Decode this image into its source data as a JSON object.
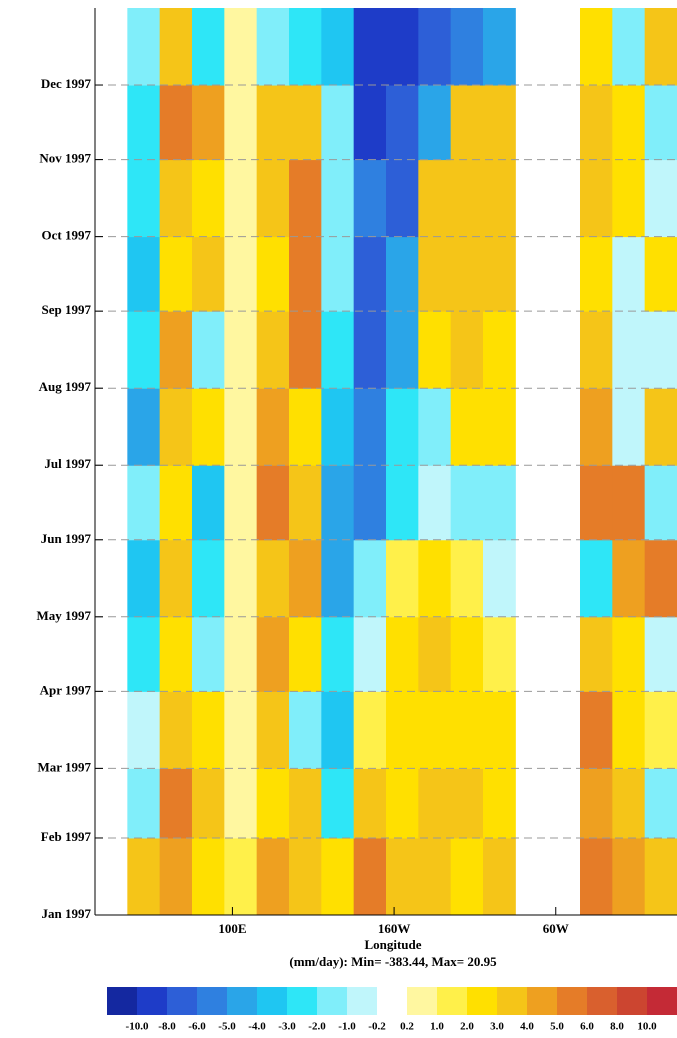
{
  "chart_data": {
    "type": "heatmap",
    "xlabel": "Longitude",
    "subtitle": "(mm/day): Min= -383.44, Max= 20.95",
    "x_bins": [
      15,
      35,
      55,
      75,
      95,
      115,
      135,
      155,
      175,
      195,
      215,
      235,
      255,
      275,
      295,
      315,
      335,
      355,
      375
    ],
    "y_bins": [
      1,
      32,
      60,
      91,
      121,
      152,
      182,
      213,
      244,
      274,
      305,
      335,
      366
    ],
    "xlim": [
      15,
      375
    ],
    "ylim": [
      1,
      366
    ],
    "xticks": [
      {
        "value": 100,
        "label": "100E"
      },
      {
        "value": 200,
        "label": "160W"
      },
      {
        "value": 300,
        "label": "60W"
      }
    ],
    "yticks": [
      {
        "value": 1,
        "label": "Jan 1997"
      },
      {
        "value": 32,
        "label": "Feb 1997"
      },
      {
        "value": 60,
        "label": "Mar 1997"
      },
      {
        "value": 91,
        "label": "Apr 1997"
      },
      {
        "value": 121,
        "label": "May 1997"
      },
      {
        "value": 152,
        "label": "Jun 1997"
      },
      {
        "value": 182,
        "label": "Jul 1997"
      },
      {
        "value": 213,
        "label": "Aug 1997"
      },
      {
        "value": 244,
        "label": "Sep 1997"
      },
      {
        "value": 274,
        "label": "Oct 1997"
      },
      {
        "value": 305,
        "label": "Nov 1997"
      },
      {
        "value": 335,
        "label": "Dec 1997"
      }
    ],
    "grid": true,
    "values": [
      [
        null,
        3,
        4,
        2,
        1,
        4,
        3,
        2,
        5,
        3,
        3,
        2,
        3,
        null,
        null,
        5,
        4,
        3
      ],
      [
        null,
        -2,
        5,
        3,
        0.5,
        2,
        3,
        -3,
        3,
        2,
        3,
        3,
        2,
        null,
        null,
        4,
        3,
        -2
      ],
      [
        null,
        -1,
        3,
        2,
        0.5,
        3,
        -2,
        -4,
        1,
        2,
        2,
        2,
        2,
        null,
        null,
        5,
        2,
        1
      ],
      [
        null,
        -3,
        2,
        -2,
        0.5,
        4,
        2,
        -3,
        -1,
        2,
        3,
        2,
        1,
        null,
        null,
        3,
        2,
        -1
      ],
      [
        null,
        -4,
        3,
        -3,
        0.5,
        3,
        4,
        -5,
        -2,
        1,
        2,
        1,
        -1,
        null,
        null,
        -3,
        4,
        5
      ],
      [
        null,
        -2,
        2,
        -4,
        0.5,
        5,
        3,
        -5,
        -6,
        -3,
        -1,
        -2,
        -2,
        null,
        null,
        5,
        5,
        -2
      ],
      [
        null,
        -5,
        3,
        2,
        0.5,
        4,
        2,
        -4,
        -6,
        -3,
        -2,
        2,
        2,
        null,
        null,
        4,
        -1,
        3
      ],
      [
        null,
        -3,
        4,
        -2,
        0.5,
        3,
        5,
        -3,
        -8,
        -5,
        2,
        3,
        2,
        null,
        null,
        3,
        -1,
        -1
      ],
      [
        null,
        -4,
        2,
        3,
        0.5,
        2,
        5,
        -2,
        -8,
        -5,
        3,
        3,
        3,
        null,
        null,
        2,
        -1,
        2
      ],
      [
        null,
        -3,
        3,
        2,
        0.5,
        3,
        5,
        -2,
        -6,
        -8,
        3,
        3,
        3,
        null,
        null,
        3,
        2,
        -1
      ],
      [
        null,
        -3,
        5,
        4,
        0.5,
        3,
        3,
        -2,
        -10,
        -8,
        -5,
        3,
        3,
        null,
        null,
        3,
        2,
        -2
      ],
      [
        null,
        -2,
        3,
        -3,
        0.5,
        -2,
        -3,
        -4,
        -10,
        -10,
        -8,
        -6,
        -5,
        null,
        null,
        2,
        -2,
        3
      ]
    ],
    "levels": [
      {
        "value": -10,
        "label": "-10.0"
      },
      {
        "value": -8,
        "label": "-8.0"
      },
      {
        "value": -6,
        "label": "-6.0"
      },
      {
        "value": -5,
        "label": "-5.0"
      },
      {
        "value": -4,
        "label": "-4.0"
      },
      {
        "value": -3,
        "label": "-3.0"
      },
      {
        "value": -2,
        "label": "-2.0"
      },
      {
        "value": -1,
        "label": "-1.0"
      },
      -0.2,
      0.2,
      {
        "value": 1,
        "label": "1.0"
      },
      {
        "value": 2,
        "label": "2.0"
      },
      {
        "value": 3,
        "label": "3.0"
      },
      {
        "value": 4,
        "label": "4.0"
      },
      {
        "value": 5,
        "label": "5.0"
      },
      {
        "value": 6,
        "label": "6.0"
      },
      {
        "value": 8,
        "label": "8.0"
      },
      {
        "value": 10,
        "label": "10.0"
      }
    ],
    "colors": [
      "#1428a0",
      "#1e3cc8",
      "#2d5fd7",
      "#2f80e0",
      "#2aa5e8",
      "#1fc6f2",
      "#2ee6f7",
      "#80eefa",
      "#c0f6fb",
      "#ffffff",
      "#fff7a0",
      "#fff04a",
      "#ffe000",
      "#f5c518",
      "#eea020",
      "#e57c28",
      "#d9602e",
      "#cc4530",
      "#c42a36"
    ]
  }
}
